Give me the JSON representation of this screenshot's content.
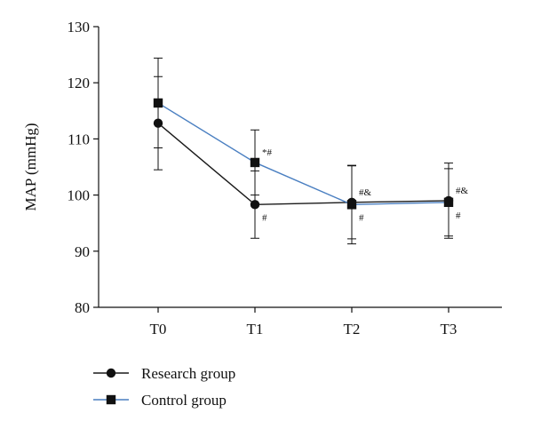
{
  "chart_data": {
    "type": "line",
    "title": "",
    "xlabel": "",
    "ylabel": "MAP (mmHg)",
    "categories": [
      "T0",
      "T1",
      "T2",
      "T3"
    ],
    "ylim": [
      80,
      130
    ],
    "yticks": [
      80,
      90,
      100,
      110,
      120,
      130
    ],
    "grid": false,
    "legend_position": "bottom-left",
    "series": [
      {
        "name": "Research group",
        "marker": "circle",
        "color": "#1a1a1a",
        "values": [
          112.8,
          98.3,
          98.7,
          99.0
        ],
        "error": [
          8.3,
          6.0,
          6.5,
          6.7
        ]
      },
      {
        "name": "Control group",
        "marker": "square",
        "color": "#4a7fc1",
        "values": [
          116.4,
          105.8,
          98.3,
          98.7
        ],
        "error": [
          8.0,
          5.8,
          7.0,
          6.0
        ]
      }
    ],
    "annotations": [
      {
        "category": "T1",
        "series": "Control group",
        "text": "*#",
        "position": "above-right"
      },
      {
        "category": "T1",
        "series": "Research group",
        "text": "#",
        "position": "below-right"
      },
      {
        "category": "T2",
        "series": "Research group",
        "text": "#&",
        "position": "above-right"
      },
      {
        "category": "T2",
        "series": "Control group",
        "text": "#",
        "position": "below-right"
      },
      {
        "category": "T3",
        "series": "Research group",
        "text": "#&",
        "position": "above-right"
      },
      {
        "category": "T3",
        "series": "Control group",
        "text": "#",
        "position": "below-right"
      }
    ]
  }
}
